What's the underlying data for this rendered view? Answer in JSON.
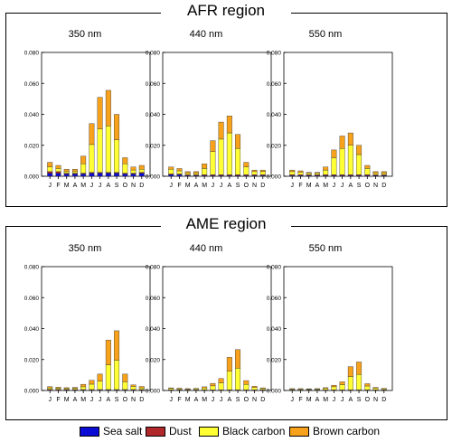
{
  "legend": [
    {
      "label": "Sea salt",
      "color": "#0b0bd6"
    },
    {
      "label": "Dust",
      "color": "#b0282a"
    },
    {
      "label": "Black carbon",
      "color": "#ffff33"
    },
    {
      "label": "Brown carbon",
      "color": "#f7a21a"
    }
  ],
  "regions": [
    {
      "title": "AFR region"
    },
    {
      "title": "AME region"
    }
  ],
  "chart_data": [
    {
      "type": "bar",
      "stacked": true,
      "region": "AFR region",
      "title": "350 nm",
      "categories": [
        "J",
        "F",
        "M",
        "A",
        "M",
        "J",
        "J",
        "A",
        "S",
        "O",
        "N",
        "D"
      ],
      "ylim": [
        0,
        0.08
      ],
      "yticks": [
        "0.000",
        "0.020",
        "0.040",
        "0.060",
        "0.080"
      ],
      "series": [
        {
          "name": "Sea salt",
          "values": [
            0.002,
            0.002,
            0.0015,
            0.0015,
            0.0015,
            0.002,
            0.002,
            0.002,
            0.002,
            0.0015,
            0.0015,
            0.002
          ]
        },
        {
          "name": "Dust",
          "values": [
            0.001,
            0.001,
            0.0005,
            0.0005,
            0.0005,
            0.0005,
            0.0005,
            0.0005,
            0.0005,
            0.0005,
            0.0005,
            0.0005
          ]
        },
        {
          "name": "Black carbon",
          "values": [
            0.003,
            0.002,
            0.001,
            0.001,
            0.006,
            0.018,
            0.028,
            0.03,
            0.021,
            0.006,
            0.002,
            0.002
          ]
        },
        {
          "name": "Brown carbon",
          "values": [
            0.003,
            0.002,
            0.0015,
            0.0015,
            0.005,
            0.0135,
            0.0205,
            0.023,
            0.0165,
            0.004,
            0.002,
            0.0025
          ]
        }
      ]
    },
    {
      "type": "bar",
      "stacked": true,
      "region": "AFR region",
      "title": "440 nm",
      "categories": [
        "J",
        "F",
        "M",
        "A",
        "M",
        "J",
        "J",
        "A",
        "S",
        "O",
        "N",
        "D"
      ],
      "ylim": [
        0,
        0.08
      ],
      "yticks": [
        "0.000",
        "0.020",
        "0.040",
        "0.060",
        "0.080"
      ],
      "series": [
        {
          "name": "Sea salt",
          "values": [
            0.001,
            0.001,
            0.0005,
            0.0005,
            0.0005,
            0.0005,
            0.0005,
            0.0005,
            0.0005,
            0.0005,
            0.0005,
            0.0005
          ]
        },
        {
          "name": "Dust",
          "values": [
            0.0005,
            0.0005,
            0.0005,
            0.0005,
            0.0005,
            0.0005,
            0.0005,
            0.0005,
            0.0005,
            0.0005,
            0.0005,
            0.0005
          ]
        },
        {
          "name": "Black carbon",
          "values": [
            0.003,
            0.002,
            0.001,
            0.001,
            0.004,
            0.015,
            0.023,
            0.027,
            0.017,
            0.005,
            0.002,
            0.002
          ]
        },
        {
          "name": "Brown carbon",
          "values": [
            0.0015,
            0.0015,
            0.001,
            0.001,
            0.003,
            0.007,
            0.011,
            0.011,
            0.009,
            0.003,
            0.001,
            0.001
          ]
        }
      ]
    },
    {
      "type": "bar",
      "stacked": true,
      "region": "AFR region",
      "title": "550 nm",
      "categories": [
        "J",
        "F",
        "M",
        "A",
        "M",
        "J",
        "J",
        "A",
        "S",
        "O",
        "N",
        "D"
      ],
      "ylim": [
        0,
        0.08
      ],
      "yticks": [
        "0.000",
        "0.020",
        "0.040",
        "0.060",
        "0.080"
      ],
      "series": [
        {
          "name": "Sea salt",
          "values": [
            0.0005,
            0.0005,
            0.0005,
            0.0005,
            0.0005,
            0.0005,
            0.0005,
            0.0005,
            0.0005,
            0.0005,
            0.0005,
            0.0005
          ]
        },
        {
          "name": "Dust",
          "values": [
            0.0005,
            0.0005,
            0.0005,
            0.0005,
            0.0005,
            0.0005,
            0.0005,
            0.0005,
            0.0005,
            0.0005,
            0.0005,
            0.0005
          ]
        },
        {
          "name": "Black carbon",
          "values": [
            0.002,
            0.0015,
            0.001,
            0.001,
            0.003,
            0.011,
            0.017,
            0.019,
            0.013,
            0.004,
            0.001,
            0.001
          ]
        },
        {
          "name": "Brown carbon",
          "values": [
            0.001,
            0.001,
            0.0005,
            0.0005,
            0.002,
            0.005,
            0.008,
            0.008,
            0.006,
            0.002,
            0.001,
            0.001
          ]
        }
      ]
    },
    {
      "type": "bar",
      "stacked": true,
      "region": "AME region",
      "title": "350 nm",
      "categories": [
        "J",
        "F",
        "M",
        "A",
        "M",
        "J",
        "J",
        "A",
        "S",
        "O",
        "N",
        "D"
      ],
      "ylim": [
        0,
        0.08
      ],
      "yticks": [
        "0.000",
        "0.020",
        "0.040",
        "0.060",
        "0.080"
      ],
      "series": [
        {
          "name": "Sea salt",
          "values": [
            0.0003,
            0.0003,
            0.0003,
            0.0003,
            0.0003,
            0.0003,
            0.0003,
            0.0003,
            0.0003,
            0.0003,
            0.0003,
            0.0003
          ]
        },
        {
          "name": "Dust",
          "values": [
            0.0004,
            0.0004,
            0.0003,
            0.0003,
            0.0003,
            0.0003,
            0.0003,
            0.0003,
            0.0003,
            0.0003,
            0.0003,
            0.0003
          ]
        },
        {
          "name": "Black carbon",
          "values": [
            0.001,
            0.0008,
            0.0006,
            0.0008,
            0.0018,
            0.0035,
            0.0055,
            0.016,
            0.019,
            0.005,
            0.002,
            0.001
          ]
        },
        {
          "name": "Brown carbon",
          "values": [
            0.0008,
            0.0006,
            0.0006,
            0.0006,
            0.0016,
            0.0025,
            0.0045,
            0.016,
            0.019,
            0.005,
            0.001,
            0.001
          ]
        }
      ]
    },
    {
      "type": "bar",
      "stacked": true,
      "region": "AME region",
      "title": "440 nm",
      "categories": [
        "J",
        "F",
        "M",
        "A",
        "M",
        "J",
        "J",
        "A",
        "S",
        "O",
        "N",
        "D"
      ],
      "ylim": [
        0,
        0.08
      ],
      "yticks": [
        "0.000",
        "0.020",
        "0.040",
        "0.060",
        "0.080"
      ],
      "series": [
        {
          "name": "Sea salt",
          "values": [
            0.0002,
            0.0002,
            0.0002,
            0.0002,
            0.0002,
            0.0002,
            0.0002,
            0.0002,
            0.0002,
            0.0002,
            0.0002,
            0.0002
          ]
        },
        {
          "name": "Dust",
          "values": [
            0.0003,
            0.0003,
            0.0002,
            0.0002,
            0.0002,
            0.0002,
            0.0002,
            0.0002,
            0.0002,
            0.0002,
            0.0002,
            0.0002
          ]
        },
        {
          "name": "Black carbon",
          "values": [
            0.0008,
            0.0006,
            0.0004,
            0.0006,
            0.0012,
            0.0026,
            0.0045,
            0.012,
            0.014,
            0.0035,
            0.0015,
            0.0008
          ]
        },
        {
          "name": "Brown carbon",
          "values": [
            0.0004,
            0.0004,
            0.0004,
            0.0004,
            0.0008,
            0.0016,
            0.0028,
            0.009,
            0.012,
            0.0025,
            0.0008,
            0.0005
          ]
        }
      ]
    },
    {
      "type": "bar",
      "stacked": true,
      "region": "AME region",
      "title": "550 nm",
      "categories": [
        "J",
        "F",
        "M",
        "A",
        "M",
        "J",
        "J",
        "A",
        "S",
        "O",
        "N",
        "D"
      ],
      "ylim": [
        0,
        0.08
      ],
      "yticks": [
        "0.000",
        "0.020",
        "0.040",
        "0.060",
        "0.080"
      ],
      "series": [
        {
          "name": "Sea salt",
          "values": [
            0.0002,
            0.0002,
            0.0002,
            0.0002,
            0.0002,
            0.0002,
            0.0002,
            0.0002,
            0.0002,
            0.0002,
            0.0002,
            0.0002
          ]
        },
        {
          "name": "Dust",
          "values": [
            0.0002,
            0.0002,
            0.0002,
            0.0002,
            0.0002,
            0.0002,
            0.0002,
            0.0002,
            0.0002,
            0.0002,
            0.0002,
            0.0002
          ]
        },
        {
          "name": "Black carbon",
          "values": [
            0.0005,
            0.0005,
            0.0004,
            0.0005,
            0.0009,
            0.002,
            0.0034,
            0.0085,
            0.01,
            0.0025,
            0.0011,
            0.0006
          ]
        },
        {
          "name": "Brown carbon",
          "values": [
            0.0003,
            0.0003,
            0.0003,
            0.0003,
            0.0005,
            0.001,
            0.0018,
            0.0065,
            0.008,
            0.0015,
            0.0005,
            0.0004
          ]
        }
      ]
    }
  ]
}
